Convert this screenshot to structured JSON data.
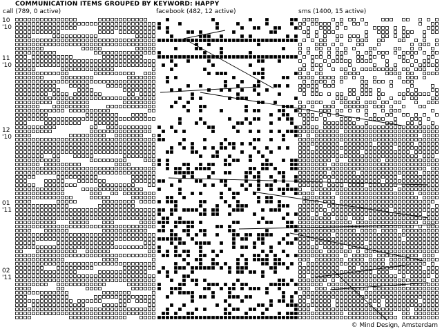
{
  "title": "COMMUNICATION ITEMS GROUPED BY KEYWORD: HAPPY",
  "columns": [
    {
      "key": "call",
      "label": "call (789, 0 active)",
      "total": 789,
      "active": 0
    },
    {
      "key": "facebook",
      "label": "facebook (482, 12 active)",
      "total": 482,
      "active": 12
    },
    {
      "key": "sms",
      "label": "sms (1400, 15 active)",
      "total": 1400,
      "active": 15
    }
  ],
  "months": [
    {
      "month": "10",
      "year": "'10"
    },
    {
      "month": "11",
      "year": "'10"
    },
    {
      "month": "12",
      "year": "'10"
    },
    {
      "month": "01",
      "year": "'11"
    },
    {
      "month": "02",
      "year": "'11"
    }
  ],
  "credit": "© Mind Design, Amsterdam",
  "colors": {
    "background": "#ffffff",
    "ink": "#000000"
  }
}
